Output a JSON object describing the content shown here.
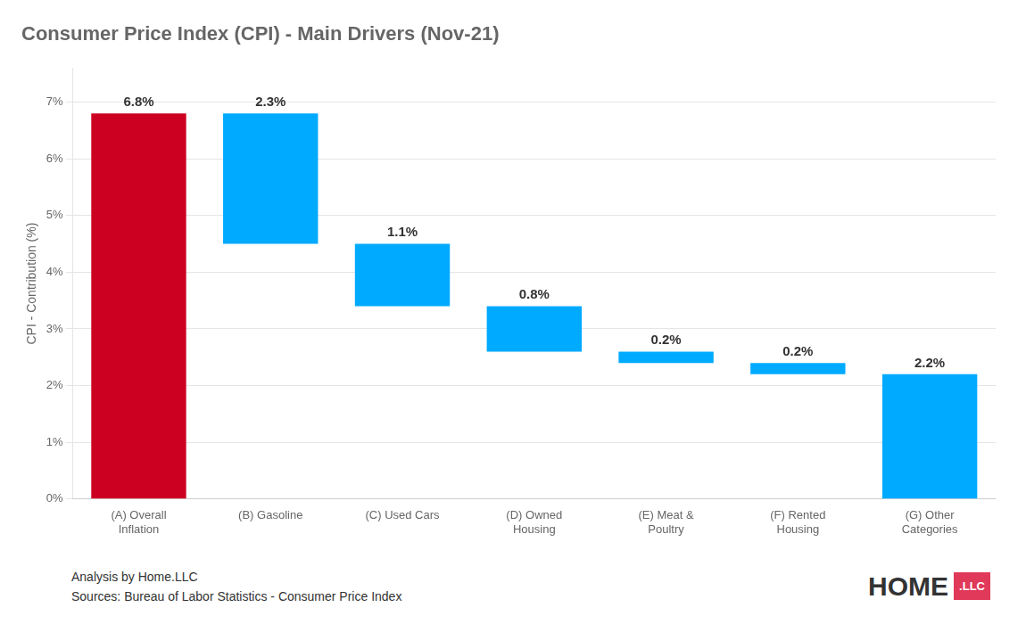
{
  "chart_data": {
    "type": "waterfall",
    "title": "Consumer Price Index (CPI) - Main Drivers (Nov-21)",
    "categories": [
      "(A) Overall\nInflation",
      "(B) Gasoline",
      "(C) Used Cars",
      "(D) Owned\nHousing",
      "(E) Meat &\nPoultry",
      "(F) Rented\nHousing",
      "(G) Other\nCategories"
    ],
    "bottoms": [
      0.0,
      4.5,
      3.4,
      2.6,
      2.4,
      2.2,
      0.0
    ],
    "values": [
      6.8,
      2.3,
      1.1,
      0.8,
      0.2,
      0.2,
      2.2
    ],
    "value_labels": [
      "6.8%",
      "2.3%",
      "1.1%",
      "0.8%",
      "0.2%",
      "0.2%",
      "2.2%"
    ],
    "colors": [
      "#cc0020",
      "#00aaff",
      "#00aaff",
      "#00aaff",
      "#00aaff",
      "#00aaff",
      "#00aaff"
    ],
    "ylabel": "CPI - Contribution (%)",
    "ylim": [
      0,
      7.6
    ],
    "yticks": [
      {
        "value": 0,
        "label": "0%"
      },
      {
        "value": 1,
        "label": "1%"
      },
      {
        "value": 2,
        "label": "2%"
      },
      {
        "value": 3,
        "label": "3%"
      },
      {
        "value": 4,
        "label": "4%"
      },
      {
        "value": 5,
        "label": "5%"
      },
      {
        "value": 6,
        "label": "6%"
      },
      {
        "value": 7,
        "label": "7%"
      }
    ],
    "grid": true,
    "data_labels": true,
    "annotations": [
      {
        "text": "Analysis by Home.LLC"
      },
      {
        "text": "Sources: Bureau of Labor Statistics - Consumer Price Index"
      },
      {
        "text": "HOME"
      },
      {
        "text": ".LLC",
        "color": "#e0395a"
      }
    ]
  }
}
